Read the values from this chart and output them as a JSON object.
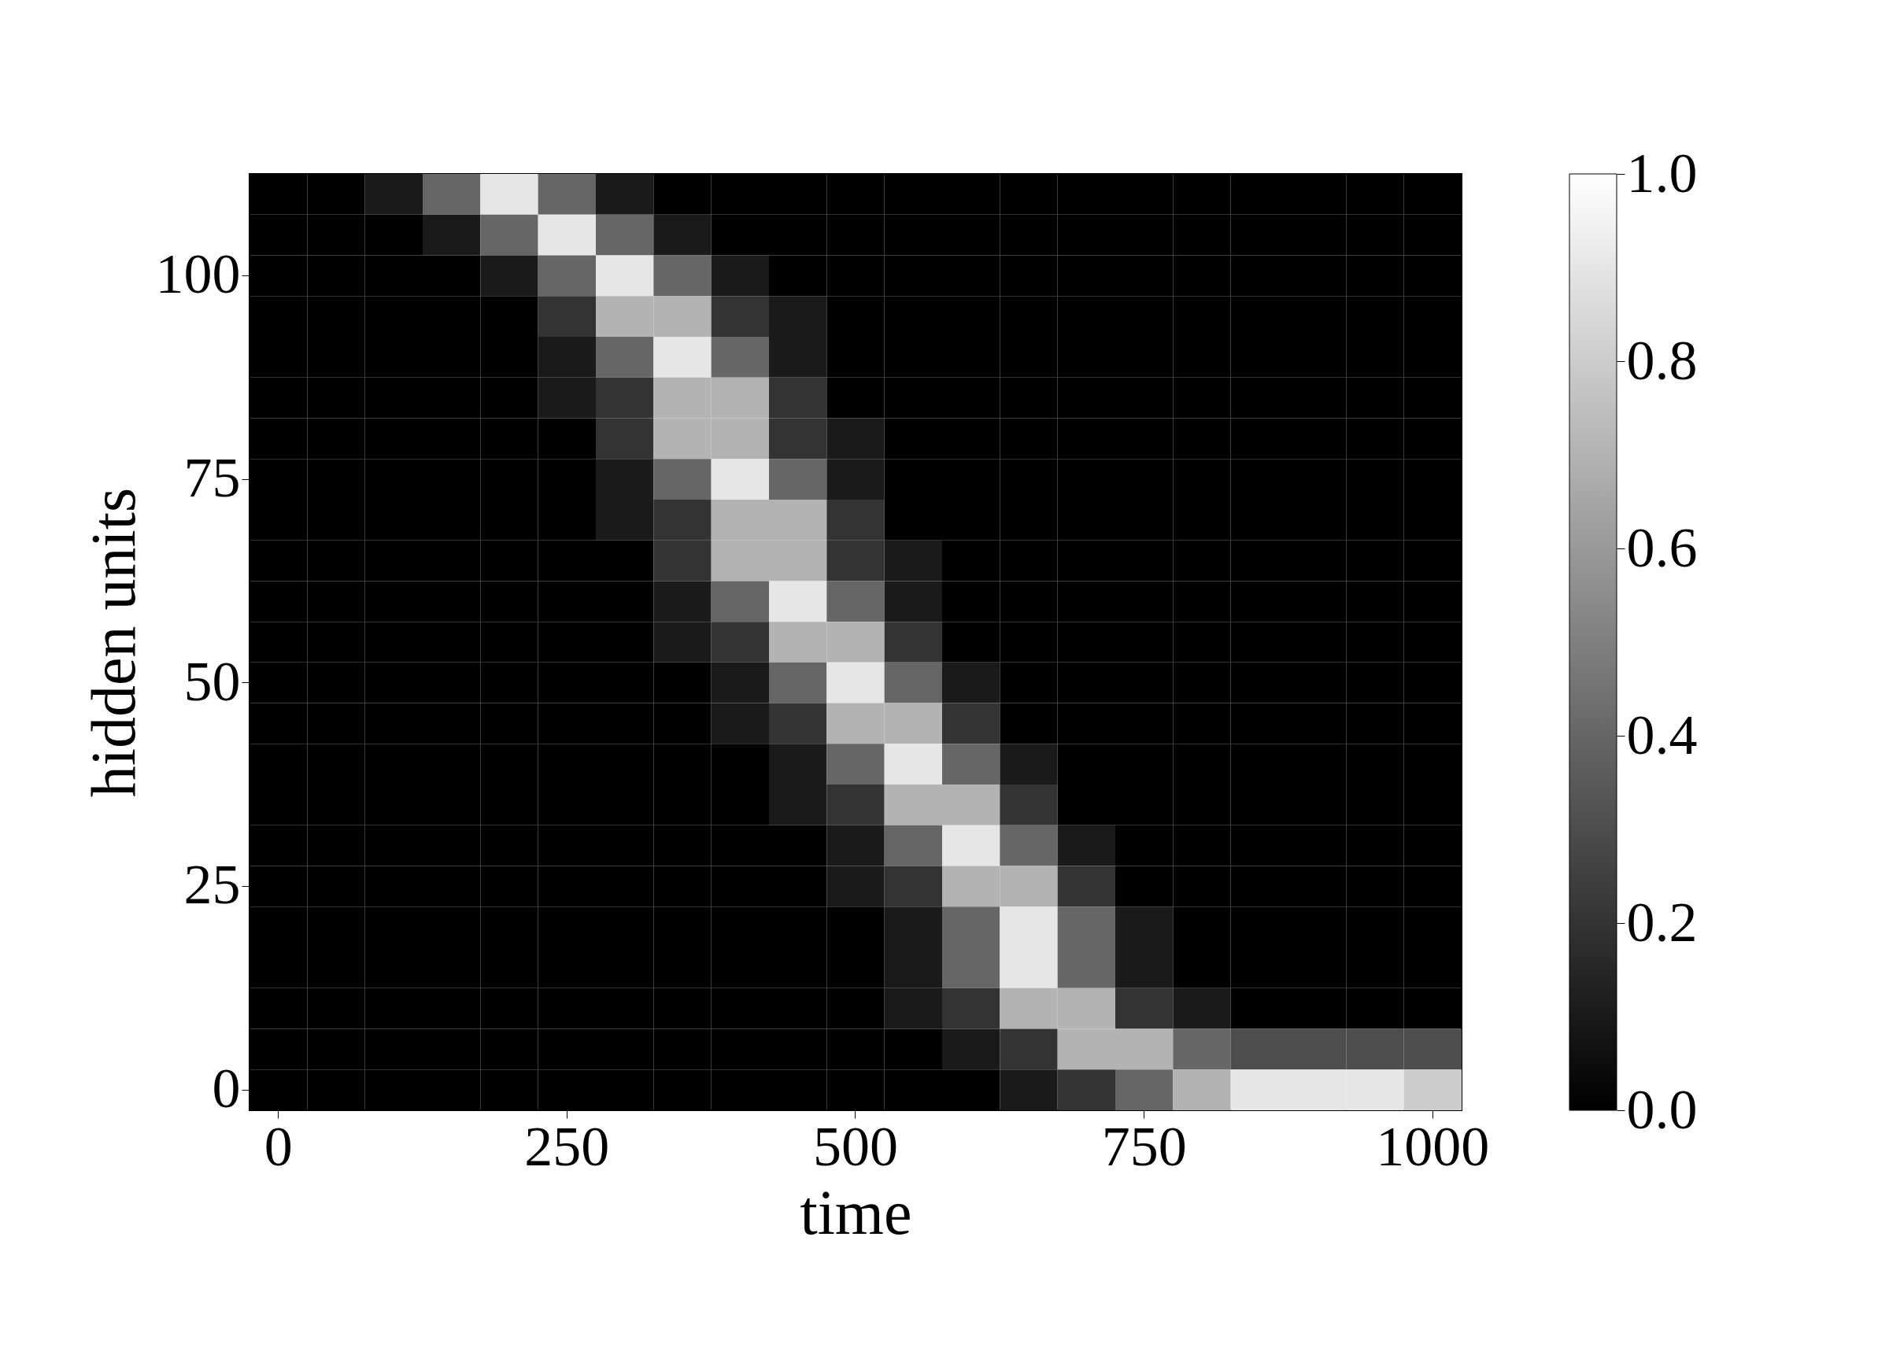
{
  "chart_data": {
    "type": "heatmap",
    "xlabel": "time",
    "ylabel": "hidden units",
    "categories": [
      "0",
      null,
      null,
      null,
      null,
      "250",
      null,
      null,
      null,
      null,
      "500",
      null,
      null,
      null,
      null,
      "750",
      null,
      null,
      null,
      null,
      "1000"
    ],
    "y_categories": [
      null,
      null,
      "100",
      null,
      null,
      null,
      null,
      "75",
      null,
      null,
      null,
      null,
      "50",
      null,
      null,
      null,
      null,
      "25",
      null,
      null,
      null,
      null,
      "0"
    ],
    "clim": [
      0,
      1
    ],
    "cticks": [
      {
        "value": 0,
        "label": "0.0"
      },
      {
        "value": 0.2,
        "label": "0.2"
      },
      {
        "value": 0.4,
        "label": "0.4"
      },
      {
        "value": 0.6,
        "label": "0.6"
      },
      {
        "value": 0.8,
        "label": "0.8"
      },
      {
        "value": 1,
        "label": "1.0"
      }
    ],
    "grid": false,
    "cells": [
      [
        0,
        0,
        0.1,
        0.4,
        0.9,
        0.4,
        0.1,
        0,
        0,
        0,
        0,
        0,
        0,
        0,
        0,
        0,
        0,
        0,
        0,
        0,
        0
      ],
      [
        0,
        0,
        0,
        0.1,
        0.4,
        0.9,
        0.4,
        0.1,
        0,
        0,
        0,
        0,
        0,
        0,
        0,
        0,
        0,
        0,
        0,
        0,
        0
      ],
      [
        0,
        0,
        0,
        0,
        0.1,
        0.4,
        0.9,
        0.4,
        0.1,
        0,
        0,
        0,
        0,
        0,
        0,
        0,
        0,
        0,
        0,
        0,
        0
      ],
      [
        0,
        0,
        0,
        0,
        0,
        0.2,
        0.7,
        0.7,
        0.2,
        0.1,
        0,
        0,
        0,
        0,
        0,
        0,
        0,
        0,
        0,
        0,
        0
      ],
      [
        0,
        0,
        0,
        0,
        0,
        0.1,
        0.4,
        0.9,
        0.4,
        0.1,
        0,
        0,
        0,
        0,
        0,
        0,
        0,
        0,
        0,
        0,
        0
      ],
      [
        0,
        0,
        0,
        0,
        0,
        0.1,
        0.2,
        0.7,
        0.7,
        0.2,
        0,
        0,
        0,
        0,
        0,
        0,
        0,
        0,
        0,
        0,
        0
      ],
      [
        0,
        0,
        0,
        0,
        0,
        0,
        0.2,
        0.7,
        0.7,
        0.2,
        0.1,
        0,
        0,
        0,
        0,
        0,
        0,
        0,
        0,
        0,
        0
      ],
      [
        0,
        0,
        0,
        0,
        0,
        0,
        0.1,
        0.4,
        0.9,
        0.4,
        0.1,
        0,
        0,
        0,
        0,
        0,
        0,
        0,
        0,
        0,
        0
      ],
      [
        0,
        0,
        0,
        0,
        0,
        0,
        0.1,
        0.2,
        0.7,
        0.7,
        0.2,
        0,
        0,
        0,
        0,
        0,
        0,
        0,
        0,
        0,
        0
      ],
      [
        0,
        0,
        0,
        0,
        0,
        0,
        0,
        0.2,
        0.7,
        0.7,
        0.2,
        0.1,
        0,
        0,
        0,
        0,
        0,
        0,
        0,
        0,
        0
      ],
      [
        0,
        0,
        0,
        0,
        0,
        0,
        0,
        0.1,
        0.4,
        0.9,
        0.4,
        0.1,
        0,
        0,
        0,
        0,
        0,
        0,
        0,
        0,
        0
      ],
      [
        0,
        0,
        0,
        0,
        0,
        0,
        0,
        0.1,
        0.2,
        0.7,
        0.7,
        0.2,
        0,
        0,
        0,
        0,
        0,
        0,
        0,
        0,
        0
      ],
      [
        0,
        0,
        0,
        0,
        0,
        0,
        0,
        0,
        0.1,
        0.4,
        0.9,
        0.4,
        0.1,
        0,
        0,
        0,
        0,
        0,
        0,
        0,
        0
      ],
      [
        0,
        0,
        0,
        0,
        0,
        0,
        0,
        0,
        0.1,
        0.2,
        0.7,
        0.7,
        0.2,
        0,
        0,
        0,
        0,
        0,
        0,
        0,
        0
      ],
      [
        0,
        0,
        0,
        0,
        0,
        0,
        0,
        0,
        0,
        0.1,
        0.4,
        0.9,
        0.4,
        0.1,
        0,
        0,
        0,
        0,
        0,
        0,
        0
      ],
      [
        0,
        0,
        0,
        0,
        0,
        0,
        0,
        0,
        0,
        0.1,
        0.2,
        0.7,
        0.7,
        0.2,
        0,
        0,
        0,
        0,
        0,
        0,
        0
      ],
      [
        0,
        0,
        0,
        0,
        0,
        0,
        0,
        0,
        0,
        0,
        0.1,
        0.4,
        0.9,
        0.4,
        0.1,
        0,
        0,
        0,
        0,
        0,
        0
      ],
      [
        0,
        0,
        0,
        0,
        0,
        0,
        0,
        0,
        0,
        0,
        0.1,
        0.2,
        0.7,
        0.7,
        0.2,
        0,
        0,
        0,
        0,
        0,
        0
      ],
      [
        0,
        0,
        0,
        0,
        0,
        0,
        0,
        0,
        0,
        0,
        0,
        0.1,
        0.4,
        0.9,
        0.4,
        0.1,
        0,
        0,
        0,
        0,
        0
      ],
      [
        0,
        0,
        0,
        0,
        0,
        0,
        0,
        0,
        0,
        0,
        0,
        0.1,
        0.4,
        0.9,
        0.4,
        0.1,
        0,
        0,
        0,
        0,
        0
      ],
      [
        0,
        0,
        0,
        0,
        0,
        0,
        0,
        0,
        0,
        0,
        0,
        0.1,
        0.2,
        0.7,
        0.7,
        0.2,
        0.1,
        0,
        0,
        0,
        0
      ],
      [
        0,
        0,
        0,
        0,
        0,
        0,
        0,
        0,
        0,
        0,
        0,
        0,
        0.1,
        0.2,
        0.7,
        0.7,
        0.4,
        0.3,
        0.3,
        0.3,
        0.3
      ],
      [
        0,
        0,
        0,
        0,
        0,
        0,
        0,
        0,
        0,
        0,
        0,
        0,
        0,
        0.1,
        0.2,
        0.4,
        0.7,
        0.9,
        0.9,
        0.9,
        0.8
      ]
    ]
  }
}
